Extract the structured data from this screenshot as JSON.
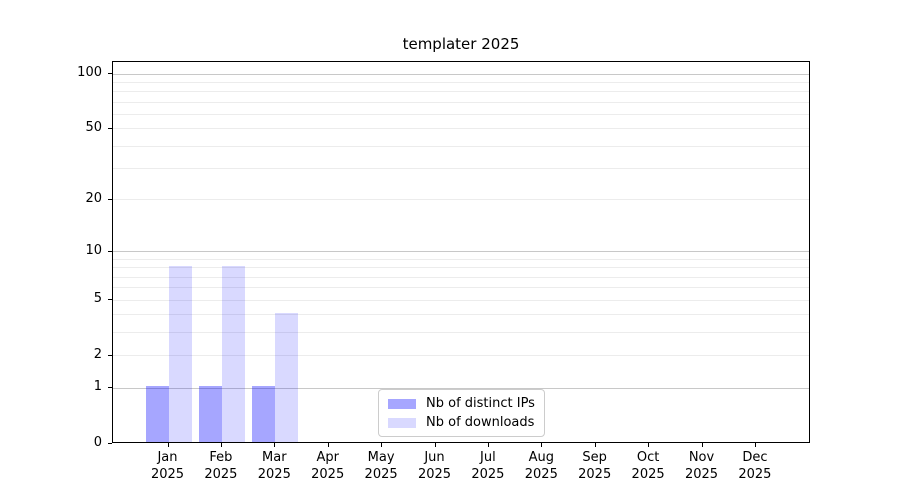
{
  "chart_data": {
    "type": "bar",
    "title": "templater 2025",
    "categories": [
      "Jan",
      "Feb",
      "Mar",
      "Apr",
      "May",
      "Jun",
      "Jul",
      "Aug",
      "Sep",
      "Oct",
      "Nov",
      "Dec"
    ],
    "x_year_label": "2025",
    "series": [
      {
        "name": "Nb of distinct IPs",
        "color": "#0000ff",
        "alpha": 0.35,
        "values": [
          1,
          1,
          1,
          0,
          0,
          0,
          0,
          0,
          0,
          0,
          0,
          0
        ]
      },
      {
        "name": "Nb of downloads",
        "color": "#0000ff",
        "alpha": 0.15,
        "values": [
          8,
          8,
          4,
          0,
          0,
          0,
          0,
          0,
          0,
          0,
          0,
          0
        ]
      }
    ],
    "yscale": "log1p",
    "ylim": [
      0,
      115
    ],
    "ytick_values": [
      0,
      1,
      2,
      5,
      10,
      20,
      50,
      100
    ],
    "ytick_labels": [
      "0",
      "1",
      "2",
      "5",
      "10",
      "20",
      "50",
      "100"
    ],
    "y_major_gridlines": [
      1,
      10,
      100
    ],
    "y_minor_gridlines": [
      2,
      3,
      4,
      5,
      6,
      7,
      8,
      9,
      20,
      30,
      40,
      50,
      60,
      70,
      80,
      90
    ],
    "grid": true,
    "legend_position": "lower center",
    "colors": {
      "grid_major": "#c8c8c8",
      "grid_minor": "#ececec",
      "spine": "#000000",
      "background": "#ffffff",
      "text": "#000000"
    }
  }
}
